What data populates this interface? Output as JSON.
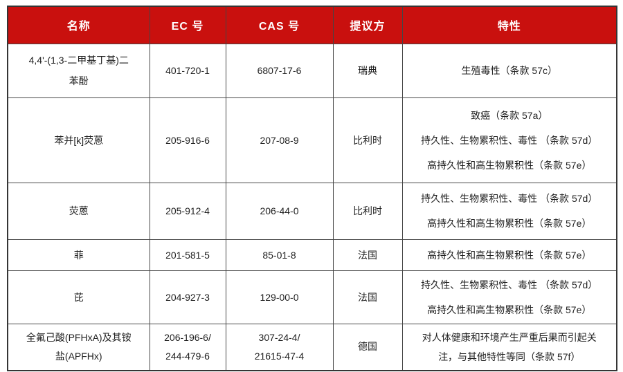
{
  "colors": {
    "header_bg": "#c9100e",
    "header_text": "#ffffff",
    "border": "#454545",
    "body_text": "#1f1f1f"
  },
  "table": {
    "columns": [
      "名称",
      "EC 号",
      "CAS 号",
      "提议方",
      "特性"
    ],
    "rows": [
      {
        "name": [
          "4,4'-(1,3-二甲基丁基)二",
          "苯酚"
        ],
        "ec": [
          "401-720-1"
        ],
        "cas": [
          "6807-17-6"
        ],
        "proposer": "瑞典",
        "traits": [
          "生殖毒性（条款 57c）"
        ]
      },
      {
        "name": [
          "苯并[k]荧蒽"
        ],
        "ec": [
          "205-916-6"
        ],
        "cas": [
          "207-08-9"
        ],
        "proposer": "比利时",
        "traits": [
          "致癌（条款 57a）",
          "持久性、生物累积性、毒性 （条款 57d）",
          "高持久性和高生物累积性（条款 57e）"
        ]
      },
      {
        "name": [
          "荧蒽"
        ],
        "ec": [
          "205-912-4"
        ],
        "cas": [
          "206-44-0"
        ],
        "proposer": "比利时",
        "traits": [
          "持久性、生物累积性、毒性 （条款 57d）",
          "高持久性和高生物累积性（条款 57e）"
        ]
      },
      {
        "name": [
          "菲"
        ],
        "ec": [
          "201-581-5"
        ],
        "cas": [
          "85-01-8"
        ],
        "proposer": "法国",
        "traits": [
          "高持久性和高生物累积性（条款 57e）"
        ]
      },
      {
        "name": [
          "芘"
        ],
        "ec": [
          "204-927-3"
        ],
        "cas": [
          "129-00-0"
        ],
        "proposer": "法国",
        "traits": [
          "持久性、生物累积性、毒性 （条款 57d）",
          "高持久性和高生物累积性（条款 57e）"
        ]
      },
      {
        "name": [
          "全氟己酸(PFHxA)及其铵",
          "盐(APFHx)"
        ],
        "ec": [
          "206-196-6/",
          "244-479-6"
        ],
        "cas": [
          "307-24-4/",
          "21615-47-4"
        ],
        "proposer": "德国",
        "traits": [
          "对人体健康和环境产生严重后果而引起关",
          "注，与其他特性等同（条款 57f）"
        ]
      }
    ]
  }
}
